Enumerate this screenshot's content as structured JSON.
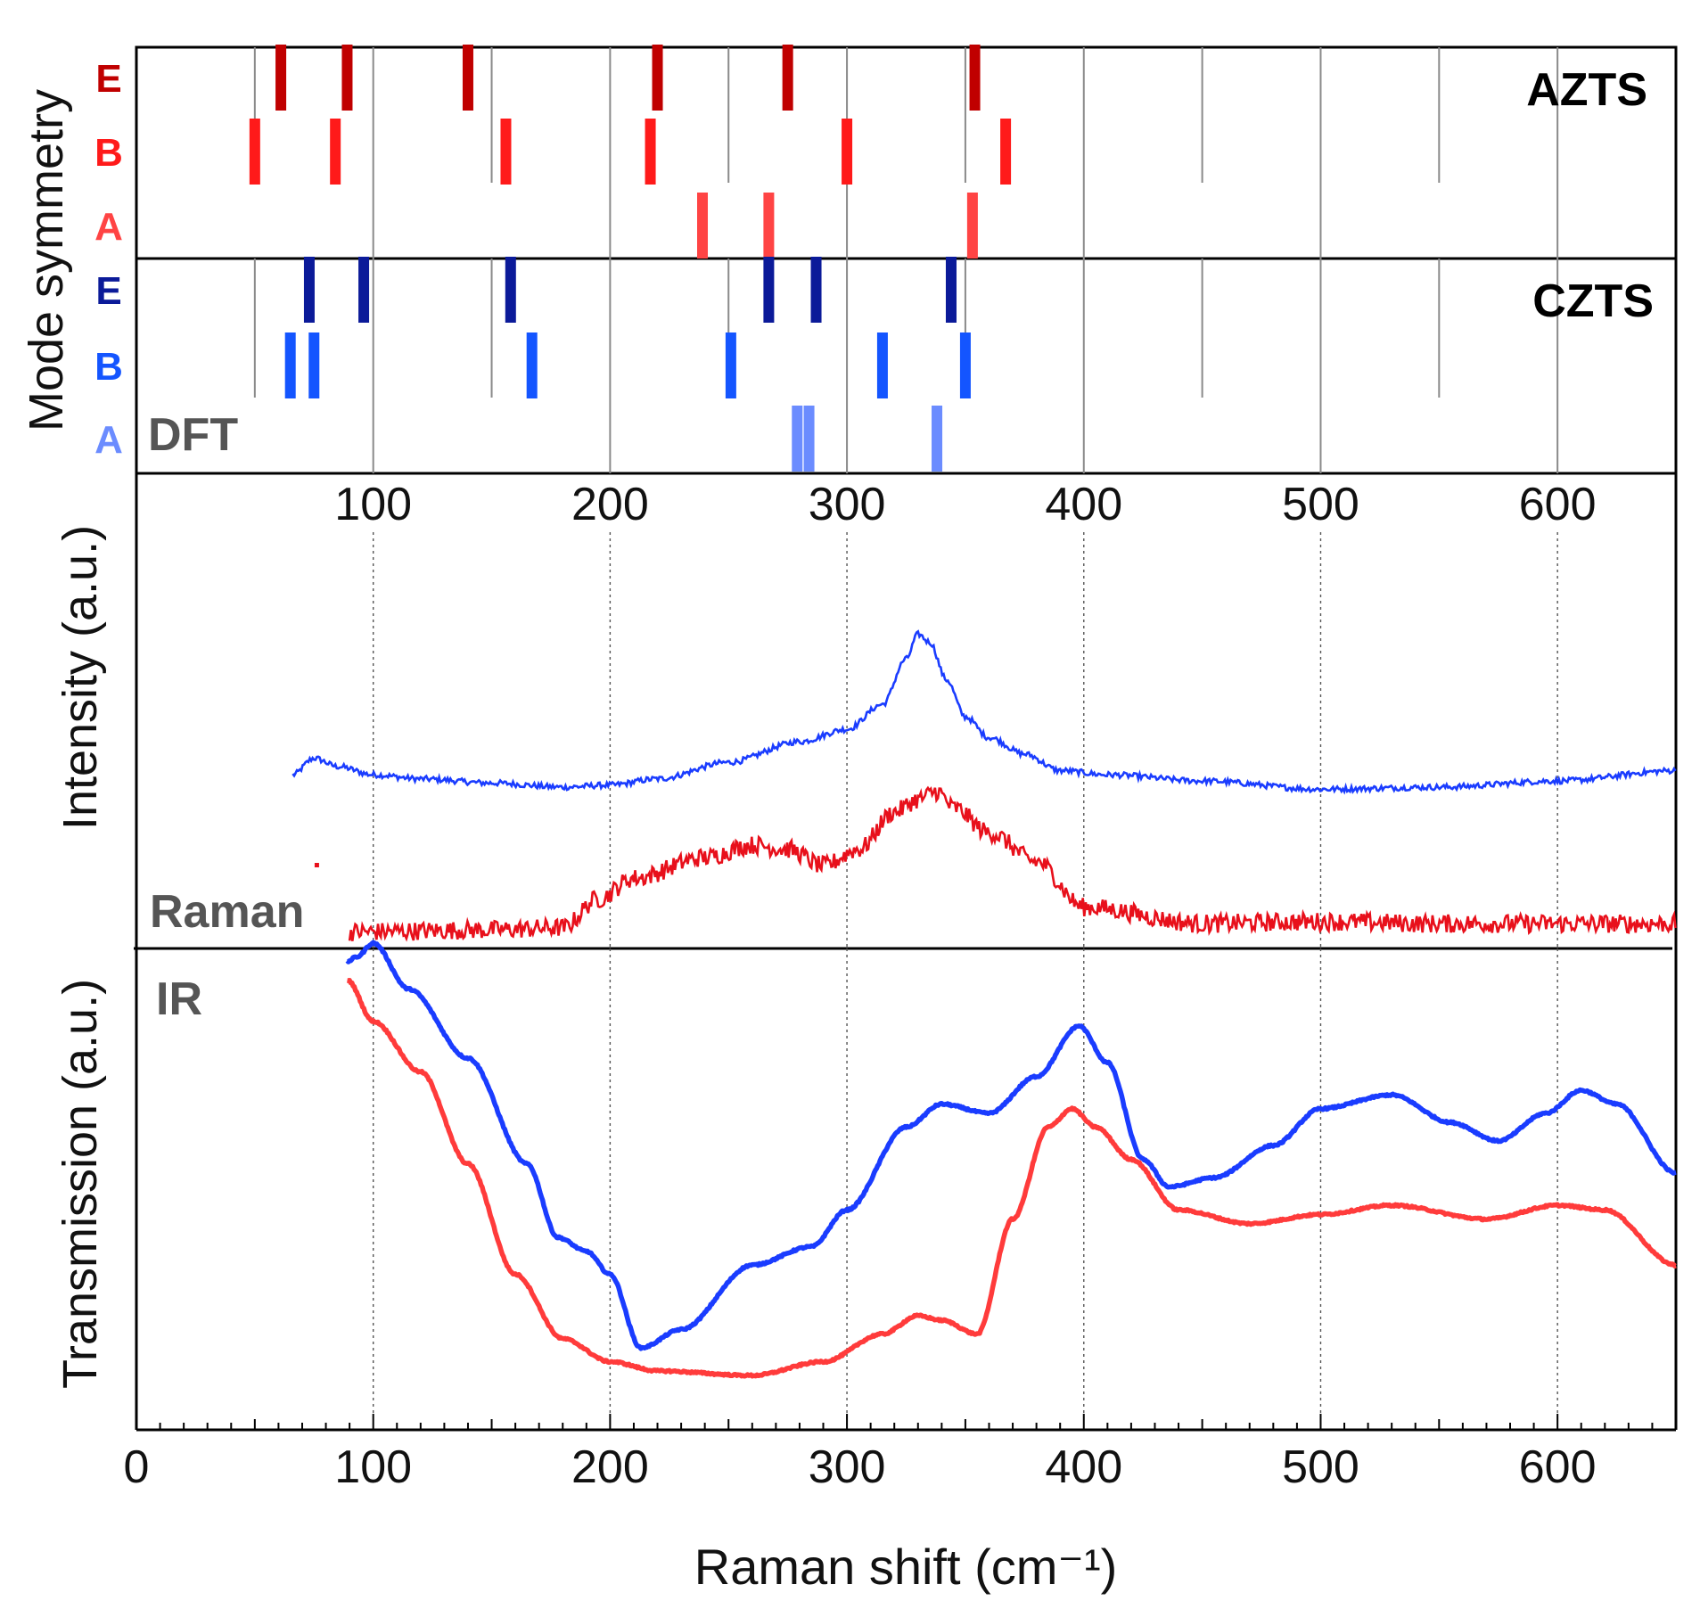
{
  "chart_data": {
    "type": "line",
    "xlabel": "Raman shift (cm⁻¹)",
    "xlim": [
      0,
      650
    ],
    "x_ticks": [
      "0",
      "100",
      "200",
      "300",
      "400",
      "500",
      "600"
    ],
    "top_ticks": [
      "100",
      "200",
      "300",
      "400",
      "500",
      "600"
    ],
    "panels": {
      "dft": {
        "ylabel": "Mode symmetry",
        "label": "DFT",
        "materials": [
          {
            "name": "AZTS",
            "color": "#e8101b",
            "modes": {
              "E": {
                "label": "E",
                "color": "#c00000",
                "values": [
                  61,
                  89,
                  140,
                  220,
                  275,
                  354
                ]
              },
              "B": {
                "label": "B",
                "color": "#ff1a1a",
                "values": [
                  50,
                  84,
                  156,
                  217,
                  300,
                  367
                ]
              },
              "A": {
                "label": "A",
                "color": "#ff4444",
                "values": [
                  239,
                  267,
                  353
                ]
              }
            }
          },
          {
            "name": "CZTS",
            "color": "#1f4fff",
            "modes": {
              "E": {
                "label": "E",
                "color": "#0b1a99",
                "values": [
                  73,
                  96,
                  158,
                  267,
                  287,
                  344
                ]
              },
              "B": {
                "label": "B",
                "color": "#1455ff",
                "values": [
                  65,
                  75,
                  167,
                  251,
                  315,
                  350
                ]
              },
              "A": {
                "label": "A",
                "color": "#6b8cff",
                "values": [
                  279,
                  284,
                  338
                ]
              }
            }
          }
        ]
      },
      "raman": {
        "ylabel": "Intensity (a.u.)",
        "label": "Raman",
        "series": [
          {
            "name": "CZTS",
            "color": "#1a3cff",
            "x": [
              66,
              75,
              85,
              100,
              120,
              150,
              180,
              200,
              220,
              250,
              280,
              300,
              315,
              325,
              330,
              335,
              342,
              350,
              360,
              375,
              390,
              410,
              450,
              500,
              550,
              600,
              650
            ],
            "y": [
              0.42,
              0.46,
              0.44,
              0.42,
              0.41,
              0.4,
              0.39,
              0.395,
              0.41,
              0.45,
              0.5,
              0.53,
              0.59,
              0.7,
              0.76,
              0.74,
              0.65,
              0.56,
              0.51,
              0.47,
              0.43,
              0.42,
              0.405,
              0.385,
              0.39,
              0.405,
              0.43
            ]
          },
          {
            "name": "AZTS",
            "color": "#e8101b",
            "x": [
              90,
              150,
              180,
              195,
              210,
              240,
              260,
              275,
              290,
              305,
              320,
              330,
              338,
              345,
              360,
              380,
              400,
              450,
              500,
              550,
              600,
              650
            ],
            "y": [
              0.04,
              0.045,
              0.05,
              0.12,
              0.17,
              0.22,
              0.25,
              0.24,
              0.2,
              0.24,
              0.33,
              0.36,
              0.38,
              0.34,
              0.28,
              0.21,
              0.1,
              0.06,
              0.065,
              0.06,
              0.06,
              0.06
            ]
          }
        ]
      },
      "ir": {
        "ylabel": "Transmission (a.u.)",
        "label": "IR",
        "series": [
          {
            "name": "CZTS",
            "color": "#1a3cff",
            "x": [
              89,
              93,
              100,
              115,
              140,
              165,
              178,
              190,
              200,
              213,
              230,
              260,
              285,
              300,
              325,
              340,
              360,
              380,
              398,
              410,
              425,
              436,
              455,
              480,
              500,
              530,
              555,
              575,
              595,
              610,
              625,
              650
            ],
            "y": [
              0.96,
              0.97,
              1.0,
              0.9,
              0.75,
              0.52,
              0.36,
              0.33,
              0.28,
              0.12,
              0.16,
              0.3,
              0.34,
              0.42,
              0.6,
              0.65,
              0.63,
              0.71,
              0.82,
              0.74,
              0.53,
              0.47,
              0.49,
              0.56,
              0.64,
              0.67,
              0.61,
              0.57,
              0.63,
              0.68,
              0.65,
              0.5
            ]
          },
          {
            "name": "AZTS",
            "color": "#ff3b3b",
            "x": [
              89,
              100,
              120,
              140,
              160,
              180,
              200,
              220,
              260,
              290,
              315,
              330,
              340,
              355,
              370,
              385,
              395,
              405,
              420,
              440,
              470,
              500,
              530,
              570,
              600,
              620,
              650
            ],
            "y": [
              0.92,
              0.83,
              0.72,
              0.52,
              0.28,
              0.14,
              0.09,
              0.07,
              0.06,
              0.09,
              0.15,
              0.19,
              0.18,
              0.15,
              0.4,
              0.6,
              0.64,
              0.6,
              0.53,
              0.42,
              0.39,
              0.41,
              0.43,
              0.4,
              0.43,
              0.42,
              0.3
            ]
          }
        ]
      }
    }
  }
}
